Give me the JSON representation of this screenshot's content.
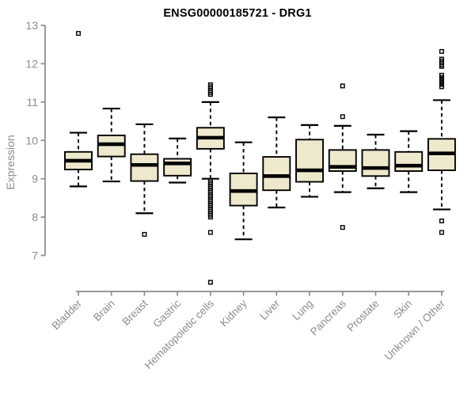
{
  "chart_data": {
    "type": "boxplot",
    "title": "ENSG00000185721 - DRG1",
    "ylabel": "Expression",
    "xlabel": "",
    "ylim": [
      7,
      13
    ],
    "yticks": [
      7,
      8,
      9,
      10,
      11,
      12,
      13
    ],
    "grid": false,
    "legend": "none",
    "colors": {
      "box_fill": "#EEE8CD",
      "box_stroke": "#000000",
      "median": "#000000",
      "axis": "#8c8c8c",
      "title": "#000000"
    },
    "categories": [
      "Bladder",
      "Brain",
      "Breast",
      "Gastric",
      "Hematopoietic cells",
      "Kidney",
      "Liver",
      "Lung",
      "Pancreas",
      "Prostate",
      "Skin",
      "Unknown / Other"
    ],
    "boxes": [
      {
        "label": "Bladder",
        "low": 8.8,
        "q1": 9.24,
        "median": 9.47,
        "q3": 9.7,
        "high": 10.2,
        "outliers": [
          12.79
        ]
      },
      {
        "label": "Brain",
        "low": 8.93,
        "q1": 9.58,
        "median": 9.9,
        "q3": 10.13,
        "high": 10.83,
        "outliers": []
      },
      {
        "label": "Breast",
        "low": 8.1,
        "q1": 8.94,
        "median": 9.36,
        "q3": 9.64,
        "high": 10.42,
        "outliers": [
          7.55
        ]
      },
      {
        "label": "Gastric",
        "low": 8.9,
        "q1": 9.08,
        "median": 9.4,
        "q3": 9.52,
        "high": 10.05,
        "outliers": []
      },
      {
        "label": "Hematopoietic cells",
        "low": 9.0,
        "q1": 9.78,
        "median": 10.07,
        "q3": 10.33,
        "high": 11.0,
        "outliers": [
          11.45,
          11.4,
          11.35,
          11.3,
          11.25,
          11.2,
          8.95,
          8.9,
          8.85,
          8.8,
          8.75,
          8.7,
          8.65,
          8.6,
          8.55,
          8.5,
          8.45,
          8.4,
          8.35,
          8.3,
          8.25,
          8.2,
          8.15,
          8.1,
          8.05,
          8.0,
          7.6,
          6.3
        ]
      },
      {
        "label": "Kidney",
        "low": 7.42,
        "q1": 8.3,
        "median": 8.68,
        "q3": 9.14,
        "high": 9.95,
        "outliers": []
      },
      {
        "label": "Liver",
        "low": 8.25,
        "q1": 8.7,
        "median": 9.07,
        "q3": 9.57,
        "high": 10.6,
        "outliers": []
      },
      {
        "label": "Lung",
        "low": 8.53,
        "q1": 8.92,
        "median": 9.22,
        "q3": 10.02,
        "high": 10.4,
        "outliers": []
      },
      {
        "label": "Pancreas",
        "low": 8.65,
        "q1": 9.2,
        "median": 9.31,
        "q3": 9.75,
        "high": 10.38,
        "outliers": [
          11.42,
          10.62,
          7.73
        ]
      },
      {
        "label": "Prostate",
        "low": 8.75,
        "q1": 9.07,
        "median": 9.28,
        "q3": 9.75,
        "high": 10.15,
        "outliers": []
      },
      {
        "label": "Skin",
        "low": 8.65,
        "q1": 9.2,
        "median": 9.34,
        "q3": 9.7,
        "high": 10.24,
        "outliers": []
      },
      {
        "label": "Unknown / Other",
        "low": 8.2,
        "q1": 9.22,
        "median": 9.66,
        "q3": 10.04,
        "high": 11.05,
        "outliers": [
          12.32,
          12.12,
          12.07,
          12.02,
          11.97,
          11.93,
          11.7,
          11.64,
          11.58,
          11.52,
          11.46,
          11.4,
          7.9,
          7.6
        ]
      }
    ]
  }
}
